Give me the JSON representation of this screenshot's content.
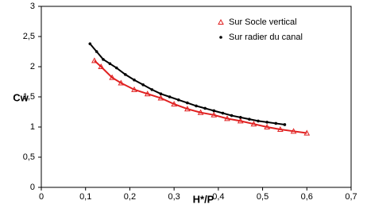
{
  "chart_data": {
    "type": "scatter",
    "x_label": "H*/P",
    "y_label": "Cw",
    "xlim": [
      0,
      0.7
    ],
    "ylim": [
      0,
      3
    ],
    "xticks": [
      0,
      {
        "value": 0.1,
        "label": "0,1"
      },
      {
        "value": 0.2,
        "label": "0,2"
      },
      {
        "value": 0.3,
        "label": "0,3"
      },
      {
        "value": 0.4,
        "label": "0,4"
      },
      {
        "value": 0.5,
        "label": "0,5"
      },
      {
        "value": 0.6,
        "label": "0,6"
      },
      {
        "value": 0.7,
        "label": "0,7"
      }
    ],
    "yticks": [
      0,
      {
        "value": 0.5,
        "label": "0,5"
      },
      1,
      {
        "value": 1.5,
        "label": "1,5"
      },
      2,
      {
        "value": 2.5,
        "label": "2,5"
      },
      3
    ],
    "series": [
      {
        "name": "Sur Socle vertical",
        "color": "#e02020",
        "marker": "triangle",
        "x": [
          0.12,
          0.135,
          0.16,
          0.18,
          0.21,
          0.24,
          0.27,
          0.3,
          0.33,
          0.36,
          0.39,
          0.42,
          0.45,
          0.48,
          0.51,
          0.54,
          0.57,
          0.6
        ],
        "values": [
          2.1,
          2.0,
          1.82,
          1.73,
          1.62,
          1.55,
          1.48,
          1.38,
          1.3,
          1.24,
          1.2,
          1.14,
          1.1,
          1.05,
          1.0,
          0.96,
          0.93,
          0.9
        ]
      },
      {
        "name": "Sur radier du canal",
        "color": "#000000",
        "marker": "dot",
        "x": [
          0.11,
          0.125,
          0.14,
          0.155,
          0.17,
          0.19,
          0.21,
          0.23,
          0.25,
          0.27,
          0.29,
          0.31,
          0.33,
          0.35,
          0.37,
          0.39,
          0.41,
          0.43,
          0.45,
          0.47,
          0.49,
          0.51,
          0.53,
          0.55
        ],
        "values": [
          2.38,
          2.25,
          2.12,
          2.05,
          1.98,
          1.87,
          1.78,
          1.7,
          1.62,
          1.55,
          1.5,
          1.45,
          1.4,
          1.35,
          1.31,
          1.27,
          1.23,
          1.19,
          1.16,
          1.13,
          1.1,
          1.08,
          1.06,
          1.04
        ]
      }
    ]
  }
}
